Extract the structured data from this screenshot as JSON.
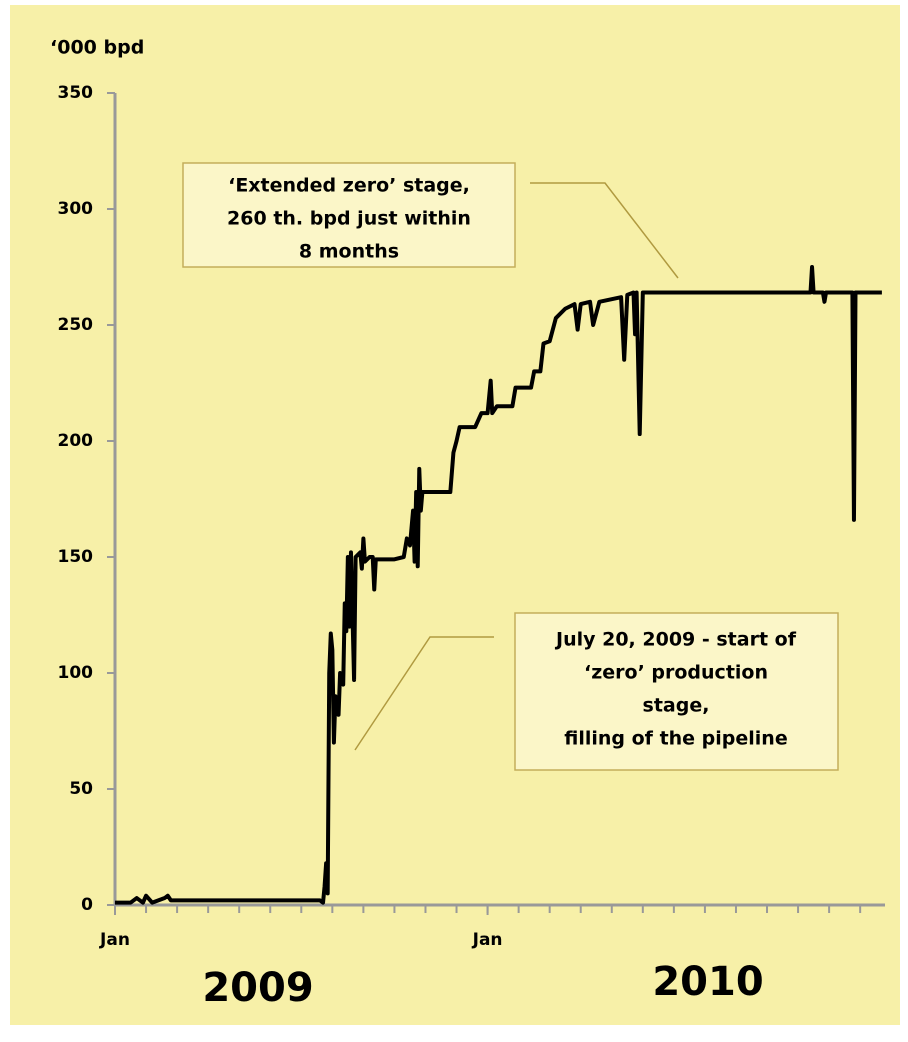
{
  "chart_data": {
    "type": "line",
    "y_axis_label": "‘000 bpd",
    "year_labels": [
      "2009",
      "2010"
    ],
    "xlim": [
      0,
      24.8
    ],
    "xticks": [
      {
        "value": 0,
        "label": "Jan"
      },
      {
        "value": 12,
        "label": "Jan"
      }
    ],
    "ylim": [
      0,
      350
    ],
    "yticks": [
      0,
      50,
      100,
      150,
      200,
      250,
      300,
      350
    ],
    "grid": false,
    "series": [
      {
        "color": "#000000",
        "x": [
          0,
          0.5,
          0.7,
          0.9,
          1.0,
          1.2,
          1.6,
          1.7,
          1.8,
          6.6,
          6.7,
          6.75,
          6.8,
          6.85,
          6.9,
          6.95,
          7.0,
          7.05,
          7.1,
          7.2,
          7.25,
          7.35,
          7.4,
          7.45,
          7.5,
          7.55,
          7.6,
          7.7,
          7.75,
          7.9,
          7.95,
          8.0,
          8.05,
          8.2,
          8.3,
          8.35,
          8.4,
          9.0,
          9.3,
          9.4,
          9.5,
          9.6,
          9.65,
          9.7,
          9.75,
          9.8,
          9.85,
          9.9,
          10.8,
          10.9,
          11.0,
          11.1,
          11.6,
          11.8,
          12.0,
          12.1,
          12.15,
          12.3,
          12.8,
          12.9,
          13.4,
          13.5,
          13.7,
          13.8,
          14.0,
          14.2,
          14.5,
          14.8,
          14.9,
          15.0,
          15.3,
          15.4,
          15.6,
          16.3,
          16.4,
          16.5,
          16.7,
          16.75,
          16.8,
          16.9,
          17.0,
          17.2,
          22.4,
          22.45,
          22.5,
          22.8,
          22.85,
          22.9,
          23.75,
          23.8,
          23.85,
          24.7
        ],
        "values": [
          1,
          1,
          3,
          1,
          4,
          1,
          3,
          4,
          2,
          2,
          1,
          8,
          18,
          5,
          100,
          117,
          110,
          70,
          90,
          82,
          100,
          95,
          130,
          118,
          150,
          120,
          152,
          97,
          150,
          152,
          145,
          158,
          148,
          150,
          150,
          136,
          149,
          149,
          150,
          158,
          155,
          170,
          148,
          178,
          146,
          188,
          170,
          178,
          178,
          195,
          200,
          206,
          206,
          212,
          212,
          226,
          212,
          215,
          215,
          223,
          223,
          230,
          230,
          242,
          243,
          253,
          257,
          259,
          248,
          259,
          260,
          250,
          260,
          262,
          235,
          263,
          264,
          246,
          264,
          203,
          264,
          264,
          264,
          275,
          264,
          264,
          260,
          264,
          264,
          166,
          264,
          264
        ]
      }
    ],
    "annotations": [
      {
        "lines": [
          "‘Extended zero’ stage,",
          "260 th. bpd just within",
          "8 months"
        ]
      },
      {
        "lines": [
          "July 20, 2009 - start of",
          "‘zero’ production",
          "stage,",
          "filling of the pipeline"
        ]
      }
    ]
  }
}
